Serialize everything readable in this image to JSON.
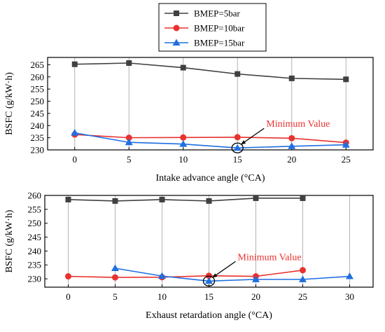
{
  "legend": {
    "entries": [
      {
        "label": "BMEP=5bar",
        "color": "#404040",
        "marker": "square"
      },
      {
        "label": "BMEP=10bar",
        "color": "#e8322f",
        "marker": "circle"
      },
      {
        "label": "BMEP=15bar",
        "color": "#1f6fe0",
        "marker": "triangle"
      }
    ]
  },
  "chart_data": [
    {
      "type": "line",
      "xlabel": "Intake advance angle (°CA)",
      "ylabel": "BSFC (g/kW·h)",
      "xlim": [
        -2.5,
        27.5
      ],
      "ylim": [
        230,
        268
      ],
      "x_ticks": [
        "0",
        "5",
        "10",
        "15",
        "20",
        "25"
      ],
      "y_ticks": [
        "230",
        "235",
        "240",
        "245",
        "250",
        "255",
        "260",
        "265"
      ],
      "grid": "vertical",
      "series": [
        {
          "name": "BMEP=5bar",
          "color": "#404040",
          "marker": "square",
          "x": [
            0,
            5,
            10,
            15,
            20,
            25
          ],
          "y": [
            265.2,
            265.7,
            263.8,
            261.2,
            259.4,
            259.0
          ]
        },
        {
          "name": "BMEP=10bar",
          "color": "#e8322f",
          "marker": "circle",
          "x": [
            0,
            5,
            10,
            15,
            20,
            25
          ],
          "y": [
            236.3,
            235.0,
            235.1,
            235.2,
            234.8,
            233.0
          ]
        },
        {
          "name": "BMEP=15bar",
          "color": "#1f6fe0",
          "marker": "triangle",
          "x": [
            0,
            5,
            10,
            15,
            20,
            25
          ],
          "y": [
            237.0,
            233.1,
            232.4,
            230.8,
            231.5,
            232.1
          ]
        }
      ],
      "annotation": {
        "text": "Minimum Value",
        "x": 15,
        "y": 230.8
      }
    },
    {
      "type": "line",
      "xlabel": "Exhaust retardation angle (°CA)",
      "ylabel": "BSFC (g/kW·h)",
      "xlim": [
        -2.5,
        32.5
      ],
      "ylim": [
        227,
        260
      ],
      "x_ticks": [
        "0",
        "5",
        "10",
        "15",
        "20",
        "25",
        "30"
      ],
      "y_ticks": [
        "230",
        "235",
        "240",
        "245",
        "250",
        "255",
        "260"
      ],
      "grid": "vertical",
      "series": [
        {
          "name": "BMEP=5bar",
          "color": "#404040",
          "marker": "square",
          "x": [
            0,
            5,
            10,
            15,
            20,
            25
          ],
          "y": [
            258.5,
            258.0,
            258.5,
            258.0,
            259.0,
            259.0
          ]
        },
        {
          "name": "BMEP=10bar",
          "color": "#e8322f",
          "marker": "circle",
          "x": [
            0,
            5,
            10,
            15,
            20,
            25
          ],
          "y": [
            230.9,
            230.5,
            230.6,
            231.1,
            230.9,
            233.1
          ]
        },
        {
          "name": "BMEP=15bar",
          "color": "#1f6fe0",
          "marker": "triangle",
          "x": [
            5,
            10,
            15,
            20,
            25,
            30
          ],
          "y": [
            233.8,
            231.0,
            229.2,
            229.8,
            229.8,
            230.9
          ]
        }
      ],
      "annotation": {
        "text": "Minimum Value",
        "x": 15,
        "y": 229.2
      }
    }
  ]
}
